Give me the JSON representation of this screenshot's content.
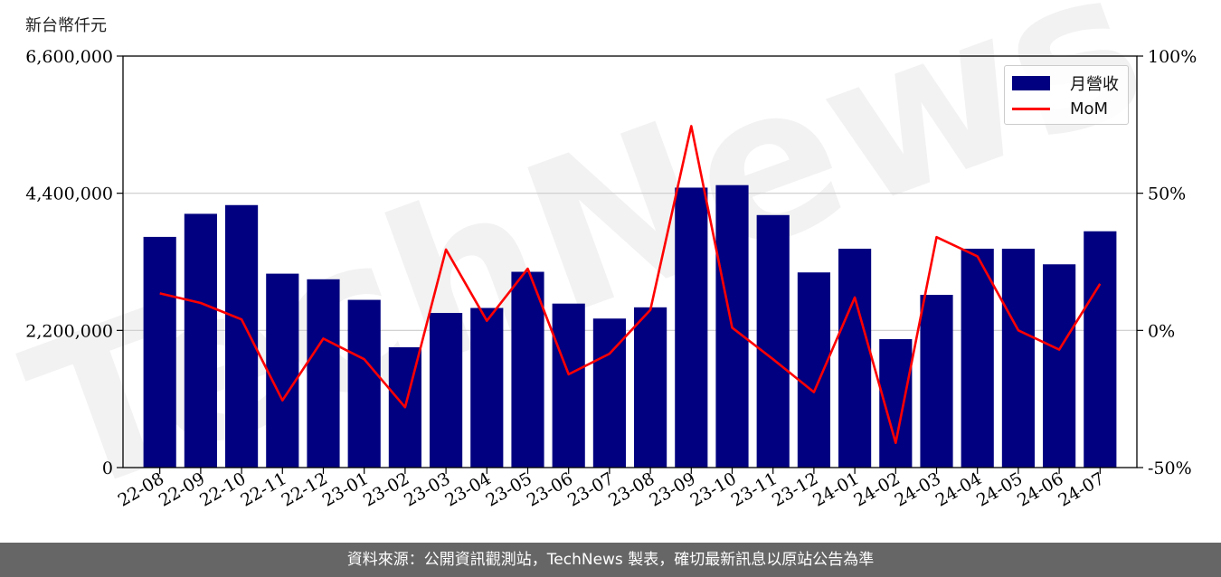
{
  "unit_label": "新台幣仟元",
  "footer_text": "資料來源：公開資訊觀測站，TechNews 製表，確切最新訊息以原站公告為準",
  "watermark_text": "TechNews",
  "colors": {
    "bar": "#000080",
    "line": "#ff0000",
    "grid": "#cccccc",
    "footer_bg": "#666666"
  },
  "chart_data": {
    "type": "bar",
    "categories": [
      "22-08",
      "22-09",
      "22-10",
      "22-11",
      "22-12",
      "23-01",
      "23-02",
      "23-03",
      "23-04",
      "23-05",
      "23-06",
      "23-07",
      "23-08",
      "23-09",
      "23-10",
      "23-11",
      "23-12",
      "24-01",
      "24-02",
      "24-03",
      "24-04",
      "24-05",
      "24-06",
      "24-07"
    ],
    "series": [
      {
        "name": "月營收",
        "type": "bar",
        "axis": "left",
        "values": [
          3700000,
          4070000,
          4210000,
          3110000,
          3020000,
          2690000,
          1930000,
          2480000,
          2560000,
          3140000,
          2630000,
          2390000,
          2570000,
          4490000,
          4530000,
          4050000,
          3130000,
          3510000,
          2060000,
          2770000,
          3510000,
          3510000,
          3260000,
          3790000
        ]
      },
      {
        "name": "MoM",
        "type": "line",
        "axis": "right",
        "values": [
          13.5,
          10,
          4,
          -25.5,
          -3,
          -10.5,
          -28,
          29.5,
          3.5,
          22.5,
          -16,
          -8.5,
          7.5,
          74.5,
          1,
          -10.5,
          -22.5,
          12,
          -41,
          34,
          27,
          0,
          -7,
          17
        ]
      }
    ],
    "y_left": {
      "ticks": [
        "0",
        "2,200,000",
        "4,400,000",
        "6,600,000"
      ],
      "tick_values": [
        0,
        2200000,
        4400000,
        6600000
      ],
      "range": [
        0,
        6600000
      ]
    },
    "y_right": {
      "ticks": [
        "-50%",
        "0%",
        "50%",
        "100%"
      ],
      "tick_values": [
        -50,
        0,
        50,
        100
      ],
      "range": [
        -50,
        100
      ]
    },
    "grid": "horizontal",
    "legend_position": "top-right"
  }
}
